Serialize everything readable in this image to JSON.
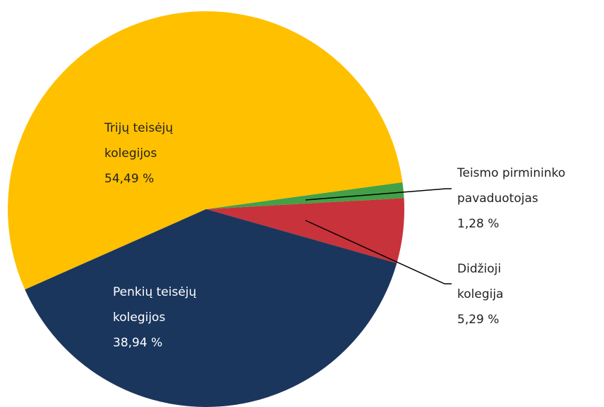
{
  "chart_data": {
    "type": "pie",
    "categories": [
      "Teismo pirmininko pavaduotojas",
      "Didžioji kolegija",
      "Penkių teisėjų kolegijos",
      "Trijų teisėjų kolegijos"
    ],
    "values": [
      1.28,
      5.29,
      38.94,
      54.49
    ],
    "value_labels": [
      "1,28 %",
      "5,29 %",
      "38,94 %",
      "54,49 %"
    ],
    "colors": [
      "#43a047",
      "#c8323a",
      "#1b365d",
      "#ffc000"
    ]
  }
}
